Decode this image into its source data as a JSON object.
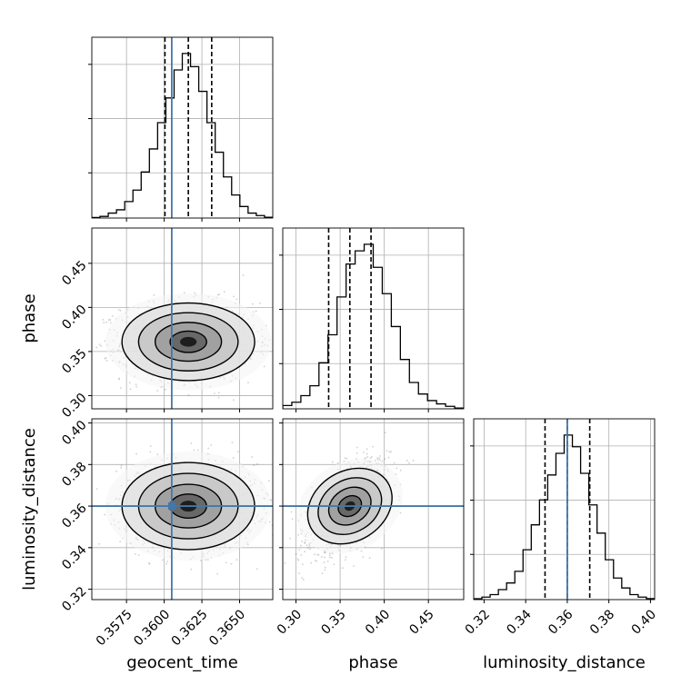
{
  "chart_data": {
    "type": "corner",
    "parameters": [
      {
        "name": "geocent_time",
        "range": [
          0.3552,
          0.3672
        ],
        "ticks": [
          0.3575,
          0.36,
          0.3625,
          0.365
        ],
        "tick_labels": [
          "0.3575",
          "0.3600",
          "0.3625",
          "0.3650"
        ],
        "truth": 0.3605,
        "quantiles": [
          0.36005,
          0.3616,
          0.36315
        ],
        "hist": [
          0.3,
          1,
          3,
          5,
          10,
          17,
          28,
          42,
          58,
          73,
          90,
          100,
          92,
          77,
          58,
          40,
          25,
          14,
          7,
          3,
          1.5,
          0.5
        ]
      },
      {
        "name": "phase",
        "range": [
          0.285,
          0.49
        ],
        "ticks": [
          0.3,
          0.35,
          0.4,
          0.45
        ],
        "tick_labels": [
          "0.30",
          "0.35",
          "0.40",
          "0.45"
        ],
        "truth": null,
        "quantiles": [
          0.337,
          0.361,
          0.385
        ],
        "hist": [
          2,
          4,
          8,
          14,
          28,
          45,
          68,
          88,
          96,
          100,
          86,
          70,
          50,
          30,
          16,
          9,
          5,
          3,
          1.5,
          0.5
        ]
      },
      {
        "name": "luminosity_distance",
        "range": [
          0.315,
          0.402
        ],
        "ticks": [
          0.32,
          0.34,
          0.36,
          0.38,
          0.4
        ],
        "tick_labels": [
          "0.32",
          "0.34",
          "0.36",
          "0.38",
          "0.40"
        ],
        "truth": 0.36,
        "quantiles": [
          0.3493,
          0.36,
          0.3708
        ],
        "hist": [
          0.5,
          1.5,
          3,
          6,
          10,
          17,
          30,
          45,
          60,
          75,
          88,
          99,
          92,
          76,
          57,
          40,
          24,
          13,
          7,
          3,
          1.5,
          0.6
        ]
      }
    ],
    "pairs": [
      {
        "x": "geocent_time",
        "y": "phase",
        "mean": [
          0.3616,
          0.361
        ],
        "sd": [
          0.0022,
          0.022
        ],
        "corr": 0.0
      },
      {
        "x": "geocent_time",
        "y": "luminosity_distance",
        "mean": [
          0.3616,
          0.36
        ],
        "sd": [
          0.0022,
          0.0105
        ],
        "corr": 0.0
      },
      {
        "x": "phase",
        "y": "luminosity_distance",
        "mean": [
          0.361,
          0.36
        ],
        "sd": [
          0.022,
          0.0105
        ],
        "corr": 0.55
      }
    ],
    "grid": true,
    "colors": {
      "truth": "#4477aa",
      "hist": "#000000",
      "quantile": "#000000",
      "points": "#555555",
      "grid": "#b0b0b0"
    }
  }
}
